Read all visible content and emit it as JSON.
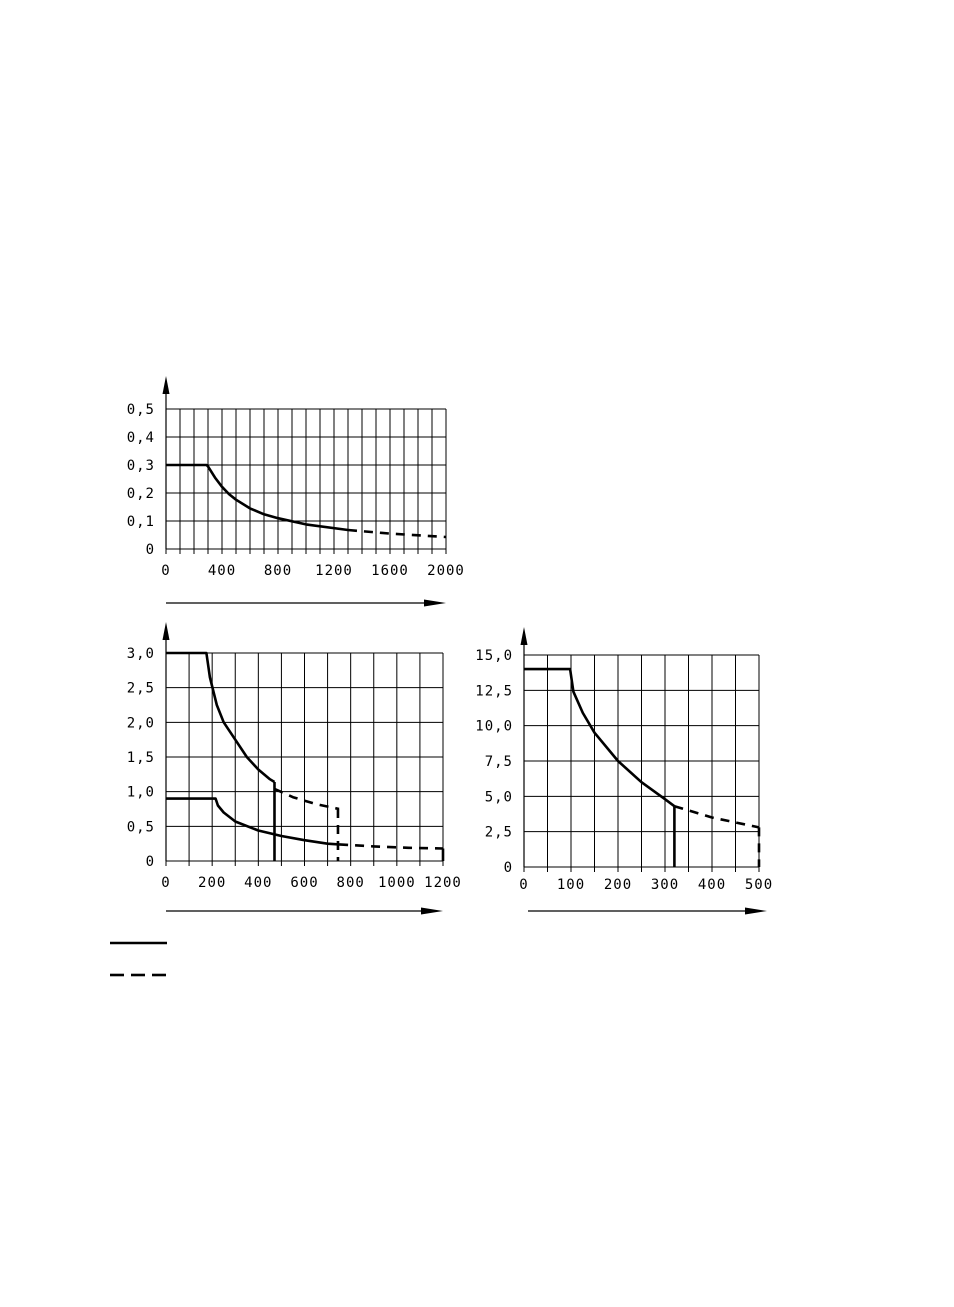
{
  "chart_data": [
    {
      "type": "line",
      "xlim": [
        0,
        2000
      ],
      "ylim": [
        0,
        0.5
      ],
      "x_ticks": [
        "0",
        "400",
        "800",
        "1200",
        "1600",
        "2000"
      ],
      "y_ticks": [
        "0",
        "0,1",
        "0,2",
        "0,3",
        "0,4",
        "0,5"
      ],
      "grid": true,
      "series": [
        {
          "style": "solid",
          "x": [
            0,
            290,
            300,
            350,
            400,
            450,
            500,
            600,
            700,
            800,
            1000,
            1300
          ],
          "y": [
            0.3,
            0.3,
            0.295,
            0.255,
            0.222,
            0.196,
            0.176,
            0.145,
            0.124,
            0.11,
            0.088,
            0.068
          ]
        },
        {
          "style": "dashed",
          "x": [
            1300,
            1600,
            2000
          ],
          "y": [
            0.068,
            0.055,
            0.043
          ]
        }
      ]
    },
    {
      "type": "line",
      "xlim": [
        0,
        1200
      ],
      "ylim": [
        0,
        3.0
      ],
      "x_ticks": [
        "0",
        "200",
        "400",
        "600",
        "800",
        "1000",
        "1200"
      ],
      "y_ticks": [
        "0",
        "0,5",
        "1,0",
        "1,5",
        "2,0",
        "2,5",
        "3,0"
      ],
      "grid": true,
      "series": [
        {
          "style": "solid",
          "x": [
            0,
            175,
            190,
            220,
            250,
            300,
            350,
            400,
            450,
            470
          ],
          "y": [
            3.0,
            3.0,
            2.65,
            2.25,
            2.0,
            1.75,
            1.5,
            1.32,
            1.18,
            1.14
          ]
        },
        {
          "style": "dashed",
          "x": [
            470,
            550,
            650,
            750
          ],
          "y": [
            1.04,
            0.92,
            0.82,
            0.75
          ]
        },
        {
          "style": "solid",
          "x": [
            0,
            215,
            225,
            250,
            300,
            400,
            500,
            600,
            700,
            750
          ],
          "y": [
            0.9,
            0.9,
            0.8,
            0.7,
            0.57,
            0.44,
            0.36,
            0.3,
            0.25,
            0.24
          ]
        },
        {
          "style": "dashed",
          "x": [
            750,
            900,
            1050,
            1200
          ],
          "y": [
            0.24,
            0.21,
            0.19,
            0.18
          ]
        }
      ],
      "cutoffs": [
        {
          "style": "solid",
          "x": 470,
          "from": 1.14,
          "to": 0
        },
        {
          "style": "dashed",
          "x": 745,
          "from": 0.75,
          "to": 0
        },
        {
          "style": "solid",
          "x": 1200,
          "from": 0.18,
          "to": 0
        }
      ]
    },
    {
      "type": "line",
      "xlim": [
        0,
        500
      ],
      "ylim": [
        0,
        15.0
      ],
      "x_ticks": [
        "0",
        "100",
        "200",
        "300",
        "400",
        "500"
      ],
      "y_ticks": [
        "0",
        "2,5",
        "5,0",
        "7,5",
        "10,0",
        "12,5",
        "15,0"
      ],
      "grid": true,
      "series": [
        {
          "style": "solid",
          "x": [
            0,
            98,
            105,
            125,
            150,
            200,
            250,
            300,
            320
          ],
          "y": [
            14.0,
            14.0,
            12.4,
            10.9,
            9.5,
            7.5,
            6.0,
            4.8,
            4.3
          ]
        },
        {
          "style": "dashed",
          "x": [
            320,
            400,
            500
          ],
          "y": [
            4.3,
            3.5,
            2.8
          ]
        }
      ],
      "cutoffs": [
        {
          "style": "solid",
          "x": 320,
          "from": 4.3,
          "to": 0
        },
        {
          "style": "dashed",
          "x": 500,
          "from": 2.8,
          "to": 0
        }
      ]
    }
  ],
  "legend": [
    {
      "style": "solid",
      "label": ""
    },
    {
      "style": "dashed",
      "label": ""
    }
  ]
}
